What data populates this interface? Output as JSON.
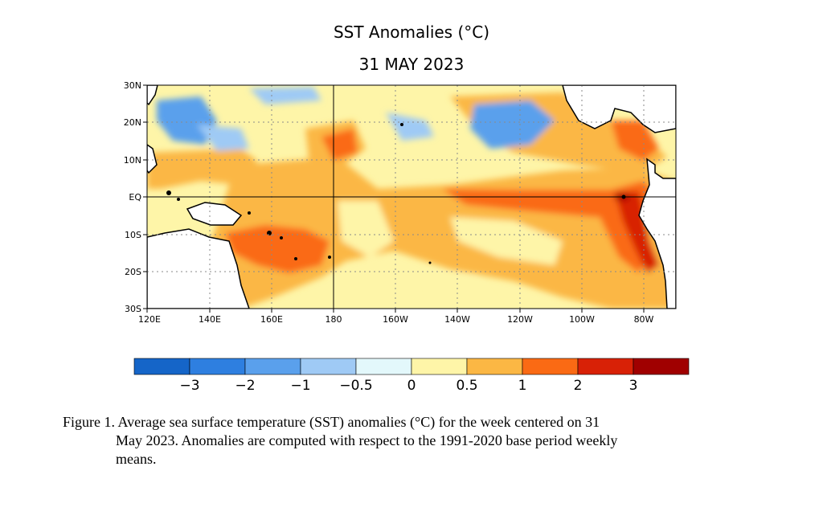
{
  "title": "SST Anomalies (°C)",
  "date": "31 MAY 2023",
  "map": {
    "region": "Tropical Pacific",
    "lat_labels": [
      "30N",
      "20N",
      "10N",
      "EQ",
      "10S",
      "20S",
      "30S"
    ],
    "lon_labels": [
      "120E",
      "140E",
      "160E",
      "180",
      "160W",
      "140W",
      "120W",
      "100W",
      "80W"
    ],
    "land_color": "#ffffff",
    "gridlines": "dotted"
  },
  "colorbar": {
    "colors": [
      "#1565c8",
      "#2e7fe0",
      "#5aa0ec",
      "#9fcaf5",
      "#e3f8fb",
      "#fef5a8",
      "#fbb744",
      "#fa6a14",
      "#d82106",
      "#a00000"
    ],
    "labels": [
      "−3",
      "−2",
      "−1",
      "−0.5",
      "0",
      "0.5",
      "1",
      "2",
      "3"
    ]
  },
  "caption": {
    "line1": "Figure 1. Average sea surface temperature (SST) anomalies (°C) for the week centered on 31",
    "line2": "May 2023.  Anomalies are computed with respect to the 1991-2020 base period weekly",
    "line3": "means."
  }
}
